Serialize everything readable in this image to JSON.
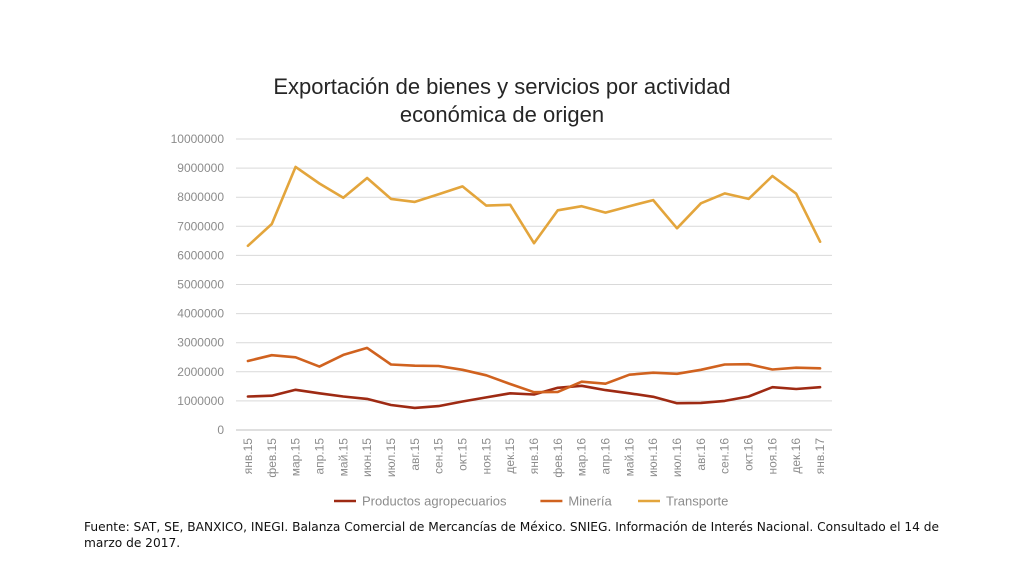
{
  "chart_data": {
    "type": "line",
    "title_lines": [
      "Exportación de bienes y servicios por actividad",
      "económica de origen"
    ],
    "categories": [
      "янв.15",
      "фев.15",
      "мар.15",
      "апр.15",
      "май.15",
      "июн.15",
      "июл.15",
      "авг.15",
      "сен.15",
      "окт.15",
      "ноя.15",
      "дек.15",
      "янв.16",
      "фев.16",
      "мар.16",
      "апр.16",
      "май.16",
      "июн.16",
      "июл.16",
      "авг.16",
      "сен.16",
      "окт.16",
      "ноя.16",
      "дек.16",
      "янв.17"
    ],
    "ylim": [
      0,
      10000000
    ],
    "yticks": [
      0,
      1000000,
      2000000,
      3000000,
      4000000,
      5000000,
      6000000,
      7000000,
      8000000,
      9000000,
      10000000
    ],
    "grid": true,
    "legend_position": "bottom",
    "series": [
      {
        "name": "Productos agropecuarios",
        "color": "#9e2a13",
        "values": [
          1150000,
          1180000,
          1380000,
          1260000,
          1150000,
          1070000,
          860000,
          760000,
          820000,
          980000,
          1120000,
          1260000,
          1220000,
          1450000,
          1520000,
          1370000,
          1260000,
          1140000,
          920000,
          930000,
          1000000,
          1150000,
          1470000,
          1410000,
          1470000
        ]
      },
      {
        "name": "Minería",
        "color": "#d0621f",
        "values": [
          2370000,
          2570000,
          2500000,
          2180000,
          2580000,
          2820000,
          2250000,
          2210000,
          2200000,
          2070000,
          1880000,
          1580000,
          1300000,
          1310000,
          1660000,
          1590000,
          1900000,
          1970000,
          1930000,
          2070000,
          2250000,
          2260000,
          2080000,
          2140000,
          2120000
        ]
      },
      {
        "name": "Transporte",
        "color": "#e3a53c",
        "values": [
          6330000,
          7080000,
          9040000,
          8470000,
          7980000,
          8660000,
          7940000,
          7840000,
          8100000,
          8370000,
          7710000,
          7740000,
          6420000,
          7550000,
          7690000,
          7470000,
          7690000,
          7900000,
          6930000,
          7790000,
          8130000,
          7940000,
          8730000,
          8120000,
          6470000
        ]
      }
    ]
  },
  "source_text": "Fuente: SAT, SE, BANXICO, INEGI. Balanza Comercial de Mercancías de México. SNIEG. Información de Interés Nacional. Consultado el 14 de marzo de 2017."
}
